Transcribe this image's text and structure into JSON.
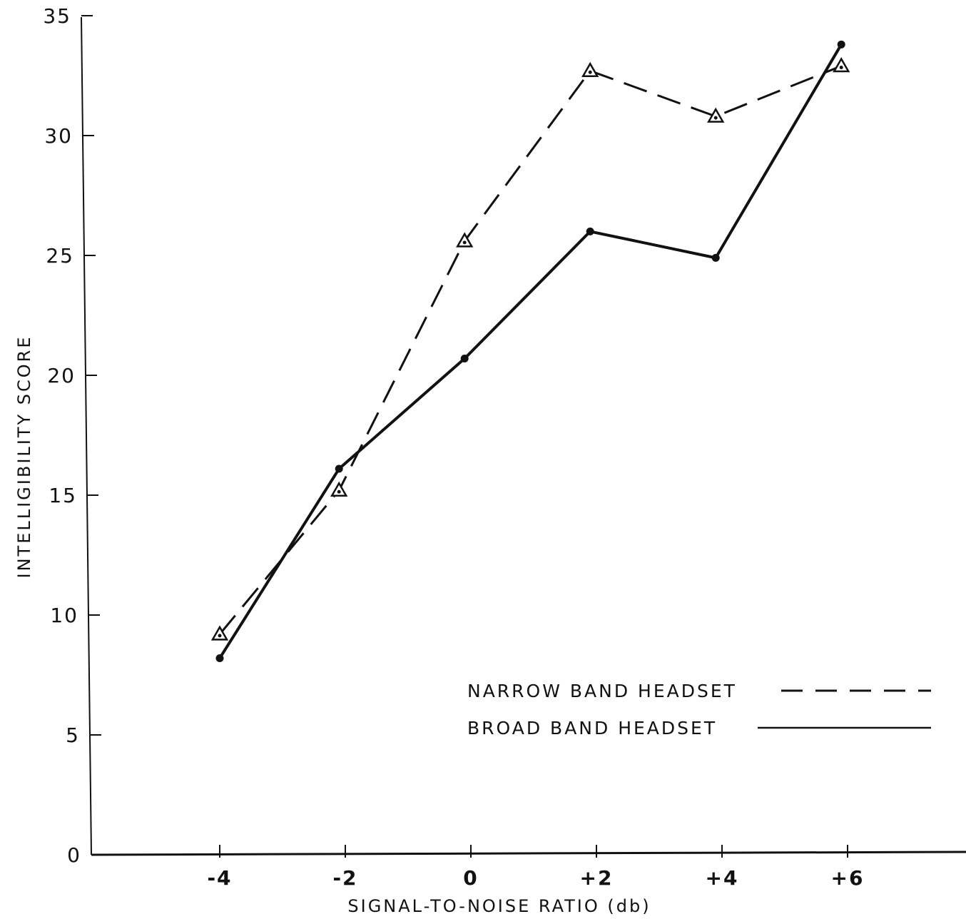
{
  "chart_data": {
    "type": "line",
    "title": "",
    "xlabel": "SIGNAL-TO-NOISE RATIO (db)",
    "ylabel": "INTELLIGIBILITY SCORE",
    "x": [
      -4,
      -2,
      0,
      2,
      4,
      6
    ],
    "x_tick_labels": [
      "-4",
      "-2",
      "0",
      "+2",
      "+4",
      "+6"
    ],
    "y_ticks": [
      0,
      5,
      10,
      15,
      20,
      25,
      30,
      35
    ],
    "y_tick_labels": [
      "0",
      "5",
      "10",
      "15",
      "20",
      "25",
      "30",
      "35"
    ],
    "xlim": [
      -6,
      7.5
    ],
    "ylim": [
      0,
      35
    ],
    "grid": false,
    "legend_position": "lower-right",
    "series": [
      {
        "name": "NARROW BAND HEADSET",
        "style": "dashed",
        "marker": "triangle",
        "color": "#111111",
        "x": [
          -4,
          -2.1,
          -0.1,
          1.9,
          3.9,
          5.9
        ],
        "y": [
          9.2,
          15.2,
          25.6,
          32.7,
          30.8,
          32.9
        ]
      },
      {
        "name": "BROAD BAND HEADSET",
        "style": "solid",
        "marker": "dot",
        "color": "#111111",
        "x": [
          -4,
          -2.1,
          -0.1,
          1.9,
          3.9,
          5.9
        ],
        "y": [
          8.2,
          16.1,
          20.7,
          26.0,
          24.9,
          33.8
        ]
      }
    ]
  }
}
